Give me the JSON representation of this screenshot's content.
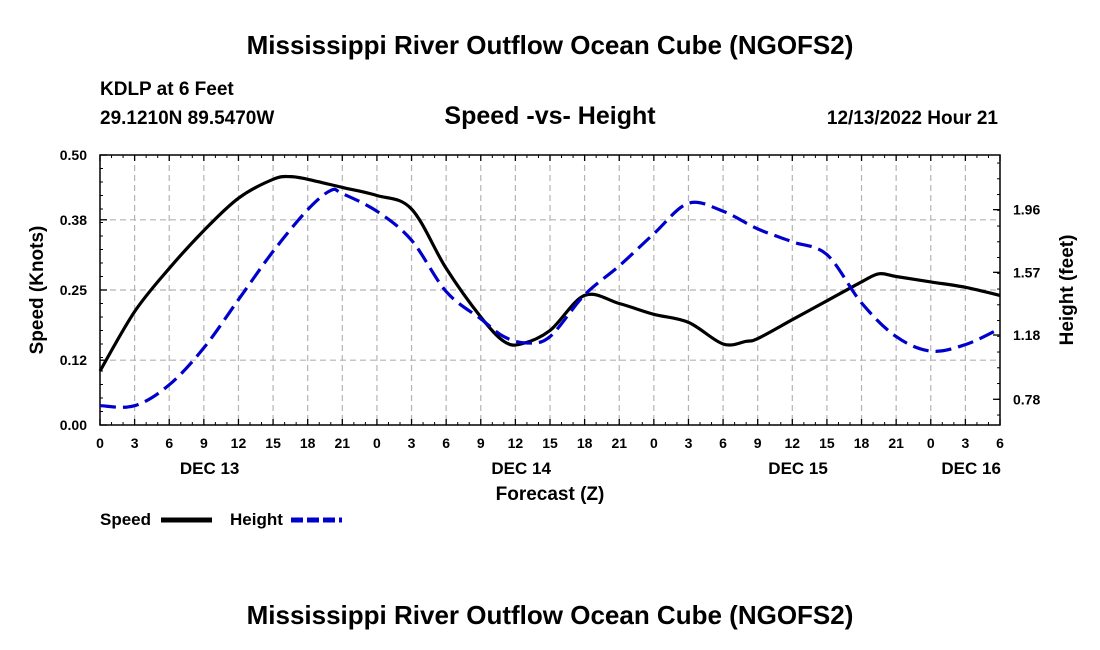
{
  "page_title": "Mississippi River Outflow Ocean Cube (NGOFS2)",
  "footer_title": "Mississippi River Outflow Ocean Cube (NGOFS2)",
  "station": {
    "name": "KDLP at 6 Feet",
    "coords": "29.1210N  89.5470W"
  },
  "chart_title": "Speed -vs- Height",
  "run_time": "12/13/2022 Hour 21",
  "chart_data": {
    "type": "line",
    "title": "Speed -vs- Height",
    "xlabel": "Forecast (Z)",
    "ylabel": "Speed (Knots)",
    "y2label": "Height (feet)",
    "x_range_hours": [
      0,
      78
    ],
    "x_tick_hours": [
      0,
      3,
      6,
      9,
      12,
      15,
      18,
      21,
      24,
      27,
      30,
      33,
      36,
      39,
      42,
      45,
      48,
      51,
      54,
      57,
      60,
      63,
      66,
      69,
      72,
      75,
      78
    ],
    "x_tick_labels": [
      "0",
      "3",
      "6",
      "9",
      "12",
      "15",
      "18",
      "21",
      "0",
      "3",
      "6",
      "9",
      "12",
      "15",
      "18",
      "21",
      "0",
      "3",
      "6",
      "9",
      "12",
      "15",
      "18",
      "21",
      "0",
      "3",
      "6"
    ],
    "date_labels": [
      {
        "label": "DEC 13",
        "hour": 9.5
      },
      {
        "label": "DEC 14",
        "hour": 36.5
      },
      {
        "label": "DEC 15",
        "hour": 60.5
      },
      {
        "label": "DEC 16",
        "hour": 75.5
      }
    ],
    "y_range": [
      0,
      0.5
    ],
    "y_ticks": [
      0,
      0.12,
      0.25,
      0.38,
      0.5
    ],
    "y_tick_labels": [
      "0.00",
      "0.12",
      "0.25",
      "0.38",
      "0.50"
    ],
    "y2_range": [
      0.62,
      2.3
    ],
    "y2_ticks": [
      0.78,
      1.18,
      1.57,
      1.96
    ],
    "y2_tick_labels": [
      "0.78",
      "1.18",
      "1.57",
      "1.96"
    ],
    "series": [
      {
        "name": "Speed",
        "axis": "left",
        "color": "#000000",
        "style": "solid",
        "points": [
          [
            0,
            0.1
          ],
          [
            3,
            0.21
          ],
          [
            6,
            0.29
          ],
          [
            9,
            0.36
          ],
          [
            12,
            0.42
          ],
          [
            15,
            0.455
          ],
          [
            16.5,
            0.46
          ],
          [
            18,
            0.455
          ],
          [
            21,
            0.44
          ],
          [
            24,
            0.425
          ],
          [
            27,
            0.4
          ],
          [
            30,
            0.29
          ],
          [
            33,
            0.2
          ],
          [
            35,
            0.155
          ],
          [
            36.5,
            0.15
          ],
          [
            39,
            0.175
          ],
          [
            42,
            0.24
          ],
          [
            45,
            0.225
          ],
          [
            48,
            0.205
          ],
          [
            51,
            0.19
          ],
          [
            54,
            0.15
          ],
          [
            56,
            0.155
          ],
          [
            57,
            0.16
          ],
          [
            60,
            0.195
          ],
          [
            63,
            0.23
          ],
          [
            66,
            0.265
          ],
          [
            67.5,
            0.28
          ],
          [
            69,
            0.275
          ],
          [
            72,
            0.265
          ],
          [
            75,
            0.255
          ],
          [
            78,
            0.24
          ]
        ]
      },
      {
        "name": "Height",
        "axis": "right",
        "color": "#0000cc",
        "style": "dashed",
        "points": [
          [
            0,
            0.74
          ],
          [
            3,
            0.74
          ],
          [
            6,
            0.87
          ],
          [
            9,
            1.1
          ],
          [
            12,
            1.4
          ],
          [
            15,
            1.7
          ],
          [
            18,
            1.96
          ],
          [
            20,
            2.08
          ],
          [
            21,
            2.06
          ],
          [
            24,
            1.95
          ],
          [
            27,
            1.77
          ],
          [
            30,
            1.45
          ],
          [
            33,
            1.28
          ],
          [
            35,
            1.17
          ],
          [
            37,
            1.13
          ],
          [
            39,
            1.17
          ],
          [
            42,
            1.43
          ],
          [
            45,
            1.61
          ],
          [
            48,
            1.81
          ],
          [
            51,
            2.0
          ],
          [
            54,
            1.95
          ],
          [
            57,
            1.84
          ],
          [
            60,
            1.76
          ],
          [
            63,
            1.68
          ],
          [
            66,
            1.38
          ],
          [
            69,
            1.17
          ],
          [
            72,
            1.08
          ],
          [
            75,
            1.12
          ],
          [
            78,
            1.22
          ]
        ]
      }
    ]
  },
  "legend": {
    "speed_label": "Speed",
    "height_label": "Height"
  },
  "colors": {
    "speed": "#000000",
    "height": "#0000cc",
    "grid": "#b4b4b4"
  }
}
